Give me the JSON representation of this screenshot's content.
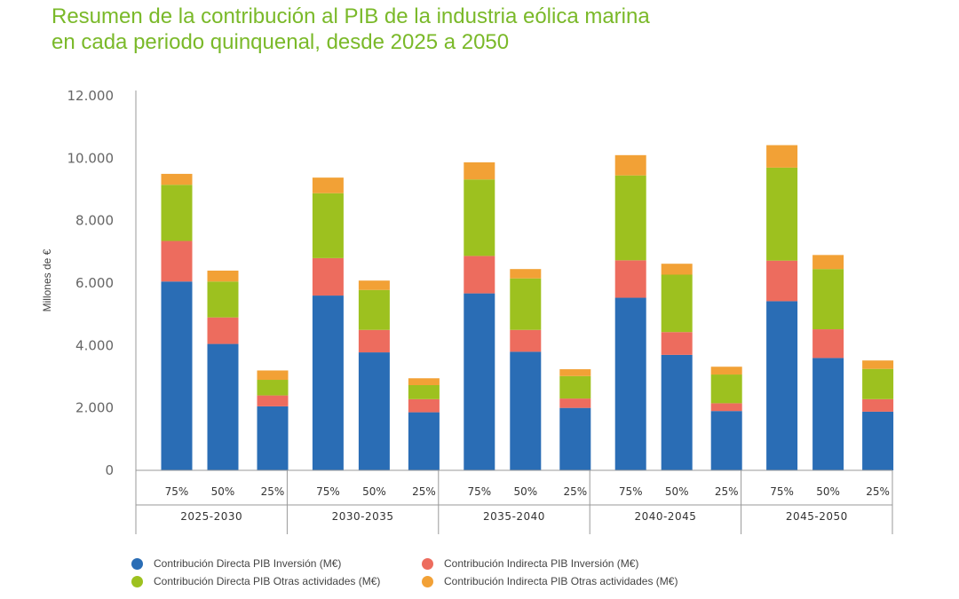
{
  "title": {
    "line1": "Resumen de la contribución al PIB de la industria eólica marina",
    "line2": "en cada periodo quinquenal, desde 2025 a 2050"
  },
  "colors": {
    "title": "#7ab929",
    "directa_inversion": "#2a6db5",
    "indirecta_inversion": "#ed6c5e",
    "directa_otras": "#9dc11f",
    "indirecta_otras": "#f2a136"
  },
  "chart_data": {
    "type": "bar",
    "stacked": true,
    "ylabel": "Millones de €",
    "ylim": [
      0,
      12000
    ],
    "yticks": [
      0,
      2000,
      4000,
      6000,
      8000,
      10000,
      12000
    ],
    "ytick_labels": [
      "0",
      "2.000",
      "4.000",
      "6.000",
      "8.000",
      "10.000",
      "12.000"
    ],
    "groups": [
      "2025-2030",
      "2030-2035",
      "2035-2040",
      "2040-2045",
      "2045-2050"
    ],
    "categories": [
      "75%",
      "50%",
      "25%",
      "75%",
      "50%",
      "25%",
      "75%",
      "50%",
      "25%",
      "75%",
      "50%",
      "25%",
      "75%",
      "50%",
      "25%"
    ],
    "series": [
      {
        "name": "Contribución Directa PIB Inversión (M€)",
        "color": "#2a6db5",
        "values": [
          6050,
          4050,
          2050,
          5600,
          3780,
          1860,
          5670,
          3800,
          2000,
          5530,
          3700,
          1900,
          5420,
          3600,
          1880
        ]
      },
      {
        "name": "Contribución Indirecta PIB Inversión (M€)",
        "color": "#ed6c5e",
        "values": [
          1300,
          850,
          350,
          1200,
          720,
          420,
          1200,
          700,
          300,
          1200,
          730,
          250,
          1300,
          920,
          400
        ]
      },
      {
        "name": "Contribución Directa PIB Otras actividades (M€)",
        "color": "#9dc11f",
        "values": [
          1800,
          1150,
          500,
          2080,
          1280,
          450,
          2450,
          1650,
          720,
          2720,
          1840,
          920,
          2980,
          1930,
          970
        ]
      },
      {
        "name": "Contribución Indirecta PIB Otras actividades (M€)",
        "color": "#f2a136",
        "values": [
          350,
          350,
          300,
          500,
          300,
          220,
          550,
          300,
          220,
          650,
          350,
          250,
          720,
          450,
          270
        ]
      }
    ]
  },
  "legend": [
    {
      "label": "Contribución Directa PIB Inversión (M€)",
      "color": "#2a6db5"
    },
    {
      "label": "Contribución Indirecta PIB Inversión (M€)",
      "color": "#ed6c5e"
    },
    {
      "label": "Contribución Directa PIB Otras actividades (M€)",
      "color": "#9dc11f"
    },
    {
      "label": "Contribución Indirecta PIB Otras actividades (M€)",
      "color": "#f2a136"
    }
  ]
}
